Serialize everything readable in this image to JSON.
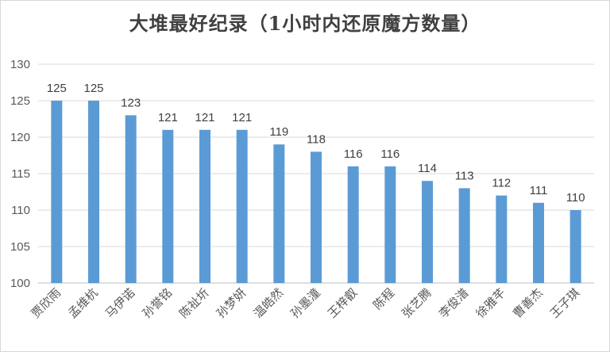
{
  "chart_data": {
    "type": "bar",
    "title": "大堆最好纪录（1小时内还原魔方数量）",
    "xlabel": "",
    "ylabel": "",
    "ylim": [
      100,
      130
    ],
    "yticks": [
      100,
      105,
      110,
      115,
      120,
      125,
      130
    ],
    "grid": true,
    "categories": [
      "贾欣雨",
      "孟维杭",
      "马伊诺",
      "孙誉铭",
      "陈祉圻",
      "孙梦妍",
      "温皓然",
      "孙墨潼",
      "王梓叡",
      "陈程",
      "张艺腾",
      "李俊潽",
      "徐雅芊",
      "曹善杰",
      "王子琪"
    ],
    "values": [
      125,
      125,
      123,
      121,
      121,
      121,
      119,
      118,
      116,
      116,
      114,
      113,
      112,
      111,
      110
    ],
    "colors": {
      "bar": "#5b9bd5",
      "grid": "#d9d9d9",
      "axis": "#bfbfbf"
    }
  }
}
